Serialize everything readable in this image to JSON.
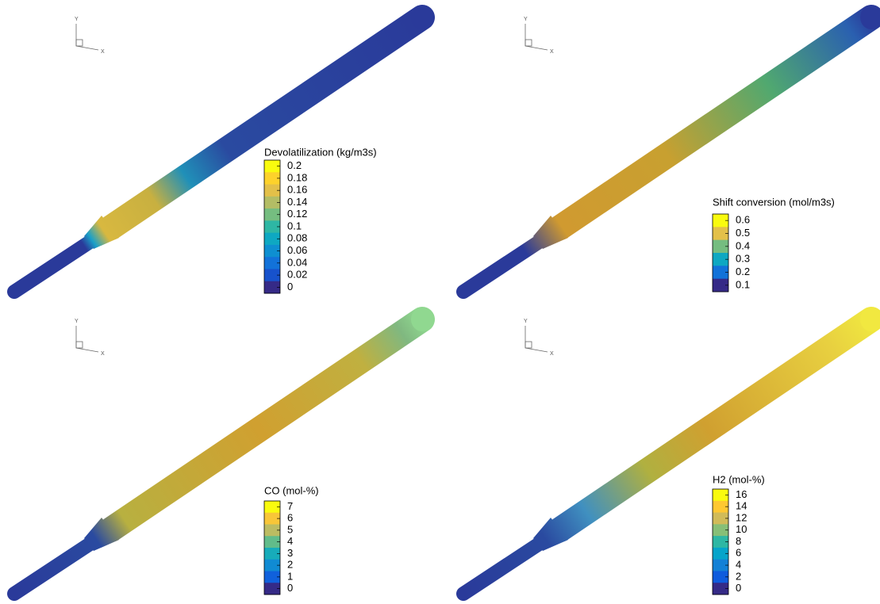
{
  "panels": [
    {
      "axis": {
        "y": "Y",
        "x": "X"
      },
      "legend": {
        "title": "Devolatilization (kg/m3s)",
        "ticks": [
          0.2,
          0.18,
          0.16,
          0.14,
          0.12,
          0.1,
          0.08,
          0.06,
          0.04,
          0.02,
          0
        ]
      }
    },
    {
      "axis": {
        "y": "Y",
        "x": "X"
      },
      "legend": {
        "title": "Shift conversion (mol/m3s)",
        "ticks": [
          0.6,
          0.5,
          0.4,
          0.3,
          0.2,
          0.1
        ]
      }
    },
    {
      "axis": {
        "y": "Y",
        "x": "X"
      },
      "legend": {
        "title": "CO (mol-%)",
        "ticks": [
          7,
          6,
          5,
          4,
          3,
          2,
          1,
          0
        ]
      }
    },
    {
      "axis": {
        "y": "Y",
        "x": "X"
      },
      "legend": {
        "title": "H2 (mol-%)",
        "ticks": [
          16,
          14,
          12,
          10,
          8,
          6,
          4,
          2,
          0
        ]
      }
    }
  ]
}
